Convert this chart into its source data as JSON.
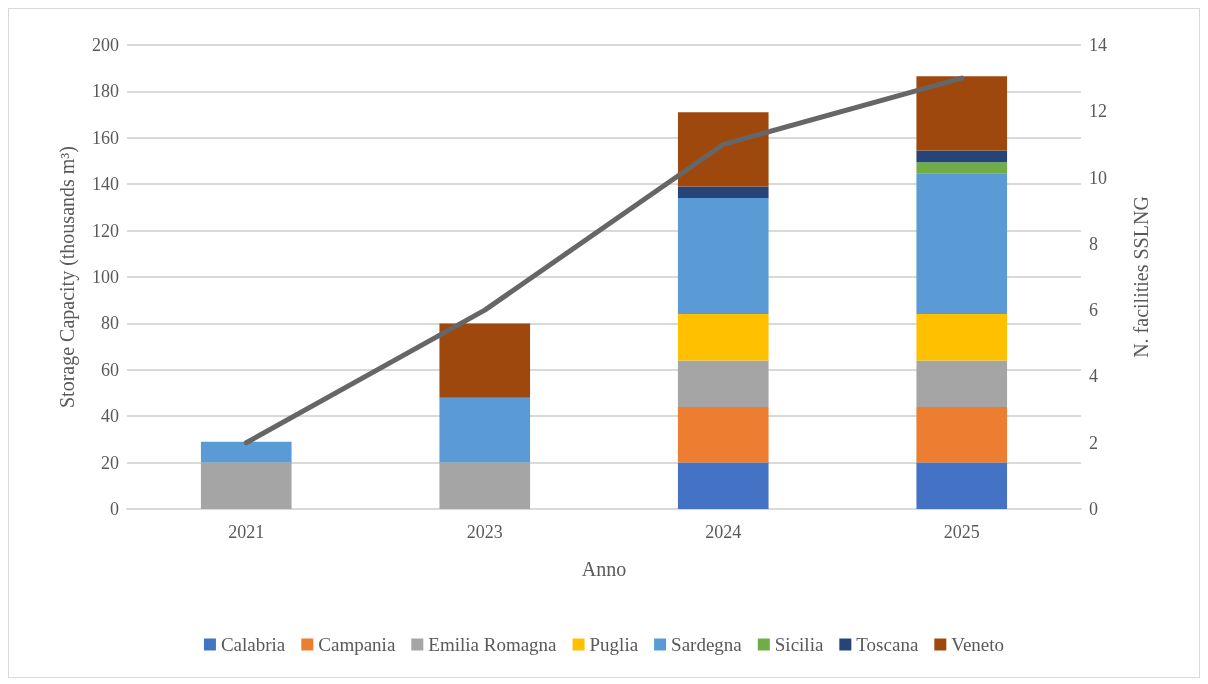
{
  "chart_data": {
    "type": "bar",
    "stacked": true,
    "xlabel": "Anno",
    "ylabel": "Storage Capacity (thousands m³)",
    "y2label": "N. facilities SSLNG",
    "categories": [
      "2021",
      "2023",
      "2024",
      "2025"
    ],
    "series": [
      {
        "name": "Calabria",
        "color": "#4472c4",
        "values": [
          null,
          null,
          20,
          20
        ]
      },
      {
        "name": "Campania",
        "color": "#ed7d31",
        "values": [
          null,
          null,
          24,
          24
        ]
      },
      {
        "name": "Emilia Romagna",
        "color": "#a5a5a5",
        "values": [
          20,
          20,
          20,
          20
        ]
      },
      {
        "name": "Puglia",
        "color": "#ffc000",
        "values": [
          null,
          null,
          20,
          20
        ]
      },
      {
        "name": "Sardegna",
        "color": "#5b9bd5",
        "values": [
          9,
          28,
          50,
          60.5
        ]
      },
      {
        "name": "Sicilia",
        "color": "#70ad47",
        "values": [
          null,
          null,
          null,
          5
        ]
      },
      {
        "name": "Toscana",
        "color": "#264478",
        "values": [
          null,
          null,
          5,
          5
        ]
      },
      {
        "name": "Veneto",
        "color": "#9e480e",
        "values": [
          null,
          32,
          32,
          32
        ]
      },
      {
        "type": "line",
        "axis": "y2",
        "color": "#666666",
        "marker": "none",
        "values": [
          2,
          6,
          11,
          13
        ]
      }
    ],
    "ylim": [
      0,
      200
    ],
    "yticks": [
      0,
      20,
      40,
      60,
      80,
      100,
      120,
      140,
      160,
      180,
      200
    ],
    "y2lim": [
      0,
      14
    ],
    "y2ticks": [
      0,
      2,
      4,
      6,
      8,
      10,
      12,
      14
    ],
    "grid": "y",
    "legend": "bottom"
  }
}
